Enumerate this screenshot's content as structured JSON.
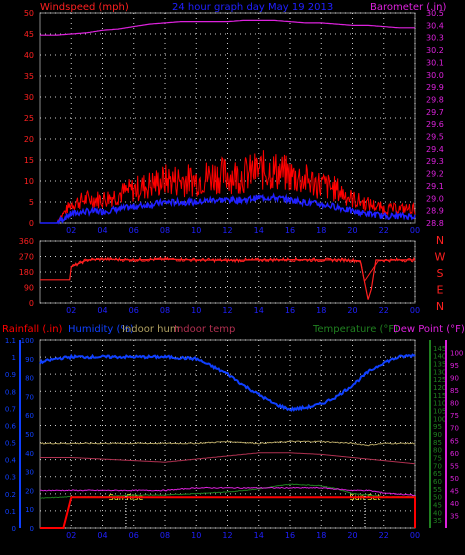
{
  "header": {
    "windspeed_label": "Windspeed (mph)",
    "title": "24 hour graph day  May 19 2013",
    "barometer_label": "Barometer (.in)"
  },
  "colors": {
    "wind": "#ff2020",
    "gust": "#ff0000",
    "avg_wind": "#2020ff",
    "barometer": "#dd22dd",
    "direction": "#ff2020",
    "rain": "#ff0000",
    "humidity": "#1040ff",
    "indoor_hum": "#b0a060",
    "indoor_temp": "#b03050",
    "temperature": "#208020",
    "dew_point": "#dd22dd",
    "grid": "#ffffff"
  },
  "chart_data": [
    {
      "type": "line",
      "title": "24 hour graph day  May 19 2013",
      "x_ticks": [
        "02",
        "04",
        "06",
        "08",
        "10",
        "12",
        "14",
        "16",
        "18",
        "20",
        "22",
        "00"
      ],
      "y_left_label": "Windspeed (mph)",
      "y_left_ticks": [
        0,
        5,
        10,
        15,
        20,
        25,
        30,
        35,
        40,
        45,
        50
      ],
      "ylim_left": [
        0,
        50
      ],
      "y_right_label": "Barometer (.in)",
      "y_right_ticks": [
        28.8,
        28.9,
        29,
        29.1,
        29.2,
        29.3,
        29.4,
        29.5,
        29.6,
        29.7,
        29.8,
        29.9,
        30,
        30.1,
        30.2,
        30.3,
        30.4,
        30.5
      ],
      "ylim_right": [
        28.8,
        30.5
      ],
      "grid": true,
      "series": [
        {
          "name": "Windspeed (mph)",
          "x": [
            0,
            1,
            2,
            3,
            4,
            5,
            6,
            7,
            8,
            9,
            10,
            11,
            12,
            13,
            14,
            15,
            16,
            17,
            18,
            19,
            20,
            21,
            22,
            23,
            24
          ],
          "y": [
            0,
            0,
            4,
            5,
            5,
            6,
            7,
            8,
            9,
            9,
            9,
            10,
            10,
            10,
            11,
            11,
            10,
            9,
            8,
            7,
            5,
            4,
            3,
            3,
            3
          ]
        },
        {
          "name": "Barometer (.in)",
          "x": [
            0,
            1,
            2,
            3,
            4,
            5,
            6,
            7,
            8,
            9,
            10,
            11,
            12,
            13,
            14,
            15,
            16,
            17,
            18,
            19,
            20,
            21,
            22,
            23,
            24
          ],
          "y": [
            30.32,
            30.32,
            30.33,
            30.34,
            30.36,
            30.37,
            30.39,
            30.41,
            30.42,
            30.43,
            30.43,
            30.43,
            30.43,
            30.44,
            30.44,
            30.44,
            30.43,
            30.42,
            30.42,
            30.41,
            30.4,
            30.4,
            30.39,
            30.38,
            30.38
          ]
        }
      ]
    },
    {
      "type": "line",
      "x_ticks": [
        "02",
        "04",
        "06",
        "08",
        "10",
        "12",
        "14",
        "16",
        "18",
        "20",
        "22",
        "00"
      ],
      "y_left_ticks": [
        0,
        90,
        180,
        270,
        360
      ],
      "ylim": [
        0,
        360
      ],
      "right_labels": [
        "N",
        "W",
        "S",
        "E",
        "N"
      ],
      "grid": true,
      "series": [
        {
          "x": [
            0,
            1,
            1.9,
            2,
            3,
            4,
            6,
            8,
            10,
            12,
            14,
            16,
            18,
            19.5,
            20.5,
            21,
            21.2,
            21.5,
            22,
            23,
            24
          ],
          "y": [
            135,
            135,
            135,
            210,
            250,
            255,
            250,
            255,
            250,
            248,
            250,
            252,
            250,
            250,
            245,
            20,
            80,
            250,
            248,
            250,
            250
          ]
        }
      ]
    },
    {
      "type": "line",
      "header_labels": [
        "Rainfall (.in)",
        "Humidity (%)",
        "Indoor hum",
        "Indoor temp",
        "Temperature (°F)",
        "Dew Point (°F)"
      ],
      "x_ticks": [
        "02",
        "04",
        "06",
        "08",
        "10",
        "12",
        "14",
        "16",
        "18",
        "20",
        "22",
        "00"
      ],
      "rain_ticks": [
        0,
        0.1,
        0.2,
        0.3,
        0.4,
        0.5,
        0.6,
        0.7,
        0.8,
        0.9,
        1,
        1.1
      ],
      "ylim_rain": [
        0,
        1.1
      ],
      "humidity_ticks": [
        0,
        10,
        20,
        30,
        40,
        50,
        60,
        70,
        80,
        90,
        100
      ],
      "ylim_humidity": [
        0,
        100
      ],
      "temperature_ticks": [
        35,
        40,
        45,
        50,
        55,
        60,
        65,
        70,
        75,
        80,
        85,
        90,
        95,
        100,
        105,
        110,
        115,
        120,
        125,
        130,
        135,
        140,
        145
      ],
      "ylim_temperature": [
        30,
        150
      ],
      "dew_point_ticks": [
        35,
        40,
        45,
        50,
        55,
        60,
        65,
        70,
        75,
        80,
        85,
        90,
        95,
        100
      ],
      "ylim_dew_point": [
        30,
        105
      ],
      "annotations": [
        {
          "text": "Sun Rise",
          "x": 5.5
        },
        {
          "text": "Sun Set",
          "x": 20.8
        }
      ],
      "grid": true,
      "series": [
        {
          "name": "Rainfall (.in)",
          "x": [
            0,
            1,
            1.5,
            2,
            24
          ],
          "y": [
            0,
            0,
            0,
            0.18,
            0.18
          ]
        },
        {
          "name": "Humidity (%)",
          "x": [
            0,
            1,
            2,
            4,
            6,
            8,
            10,
            11,
            12,
            13,
            14,
            15,
            16,
            17,
            18,
            19,
            20,
            21,
            22,
            23,
            24
          ],
          "y": [
            88,
            90,
            91,
            91,
            91,
            91,
            90,
            86,
            82,
            76,
            71,
            66,
            63,
            64,
            66,
            70,
            76,
            83,
            88,
            91,
            92
          ]
        },
        {
          "name": "Indoor hum",
          "x": [
            0,
            2,
            4,
            6,
            8,
            10,
            12,
            14,
            16,
            18,
            20,
            21,
            22,
            24
          ],
          "y": [
            45,
            45,
            45,
            45,
            45,
            45,
            46,
            45,
            46,
            46,
            45,
            44,
            45,
            45
          ]
        },
        {
          "name": "Indoor temp",
          "x": [
            0,
            2,
            4,
            6,
            8,
            10,
            12,
            14,
            16,
            18,
            20,
            22,
            24
          ],
          "y": [
            75,
            75,
            74,
            73,
            72,
            74,
            76,
            78,
            78,
            77,
            75,
            73,
            71
          ]
        },
        {
          "name": "Temperature (°F)",
          "x": [
            0,
            2,
            4,
            6,
            8,
            10,
            12,
            14,
            16,
            18,
            19,
            20,
            22,
            24
          ],
          "y": [
            49,
            50,
            50,
            51,
            51,
            52,
            53,
            55,
            58,
            57,
            55,
            52,
            50,
            50
          ]
        },
        {
          "name": "Dew Point (°F)",
          "x": [
            0,
            2,
            4,
            6,
            8,
            10,
            12,
            14,
            16,
            18,
            20,
            21,
            22,
            24
          ],
          "y": [
            45,
            45,
            45,
            45,
            45,
            46,
            46,
            46,
            46,
            46,
            45,
            45,
            44,
            43
          ]
        }
      ]
    }
  ]
}
